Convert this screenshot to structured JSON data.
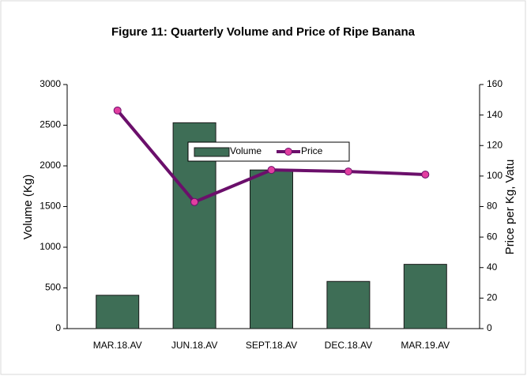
{
  "chart_data": {
    "type": "bar",
    "title": "Figure 11: Quarterly Volume and Price of Ripe Banana",
    "categories": [
      "MAR.18.AV",
      "JUN.18.AV",
      "SEPT.18.AV",
      "DEC.18.AV",
      "MAR.19.AV"
    ],
    "series": [
      {
        "name": "Volume",
        "type": "bar",
        "color": "#3e6e56",
        "values": [
          410,
          2530,
          1950,
          580,
          790
        ]
      },
      {
        "name": "Price",
        "type": "line",
        "axis": "y2",
        "color": "#6b0f6b",
        "marker_color": "#e23ea0",
        "values": [
          143,
          83,
          104,
          103,
          101
        ]
      }
    ],
    "y_label": "Volume  (Kg)",
    "y2_label": "Price per Kg, Vatu",
    "ylim": [
      0,
      3000
    ],
    "yticks": [
      0,
      500,
      1000,
      1500,
      2000,
      2500,
      3000
    ],
    "y2lim": [
      0,
      160
    ],
    "y2ticks": [
      0,
      20,
      40,
      60,
      80,
      100,
      120,
      140,
      160
    ],
    "legend": "top"
  }
}
